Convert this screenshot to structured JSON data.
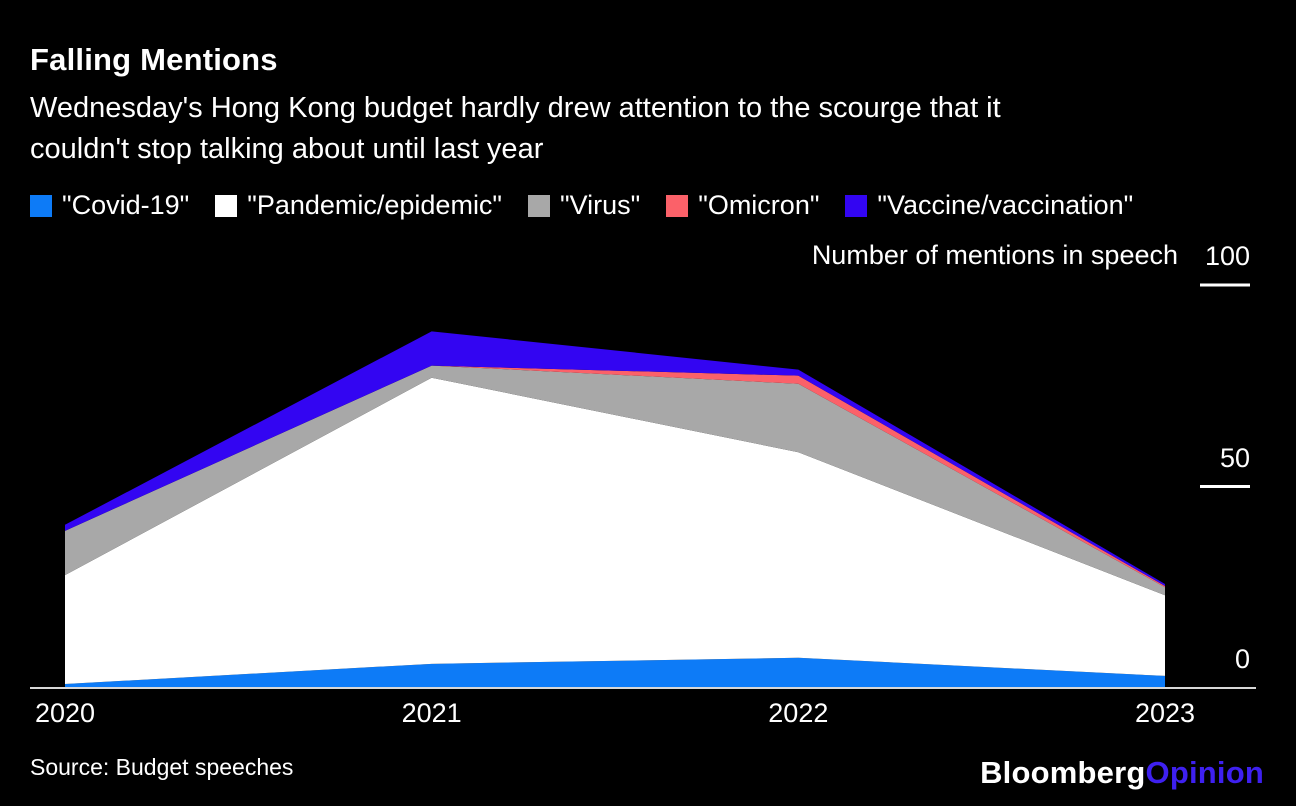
{
  "header": {
    "title": "Falling Mentions",
    "subtitle_lines": [
      "Wednesday's Hong Kong budget hardly drew attention to the scourge that it",
      "couldn't stop talking about until last year"
    ]
  },
  "chart_data": {
    "type": "area",
    "stacked": true,
    "title": "Falling Mentions",
    "ylabel": "Number of mentions in speech",
    "xlabel": "",
    "categories": [
      "2020",
      "2021",
      "2022",
      "2023"
    ],
    "series": [
      {
        "name": "\"Covid-19\"",
        "color": "#0d7bf7",
        "values": [
          1,
          6,
          7.5,
          3
        ]
      },
      {
        "name": "\"Pandemic/epidemic\"",
        "color": "#ffffff",
        "values": [
          27,
          71,
          51,
          20
        ]
      },
      {
        "name": "\"Virus\"",
        "color": "#a8a8a8",
        "values": [
          11,
          3,
          17,
          2
        ]
      },
      {
        "name": "\"Omicron\"",
        "color": "#fb6169",
        "values": [
          0,
          0,
          2,
          0.3
        ]
      },
      {
        "name": "\"Vaccine/vaccination\"",
        "color": "#3305f2",
        "values": [
          1.5,
          8.5,
          1.5,
          0.5
        ]
      }
    ],
    "ylim": [
      0,
      100
    ],
    "yticks": [
      0,
      50,
      100
    ],
    "ytick_labels": [
      "0",
      "50",
      "100"
    ],
    "grid": false,
    "legend_position": "top-left"
  },
  "footer": {
    "source": "Source: Budget speeches",
    "brand": "Bloomberg",
    "brand_suffix": "Opinion"
  },
  "colors": {
    "background": "#000000",
    "text": "#ffffff",
    "axis": "#d7d7d7",
    "tick": "#ffffff",
    "brand": "#ffffff",
    "brand_suffix": "#3e20f0"
  }
}
